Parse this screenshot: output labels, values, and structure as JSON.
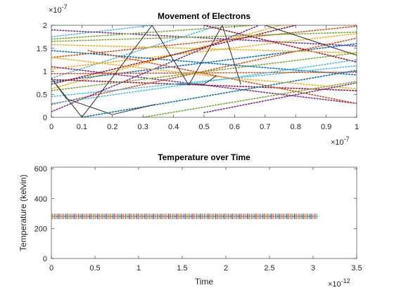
{
  "chart_data": [
    {
      "type": "line",
      "title": "Movement of Electrons",
      "xlabel": "",
      "ylabel": "",
      "xlim": [
        0,
        1e-07
      ],
      "ylim": [
        0,
        2e-07
      ],
      "x_ticks": [
        "0",
        "0.1",
        "0.2",
        "0.3",
        "0.4",
        "0.5",
        "0.6",
        "0.7",
        "0.8",
        "0.9",
        "1"
      ],
      "y_ticks": [
        "0",
        "0.5",
        "1",
        "1.5",
        "2"
      ],
      "x_exponent": "-7",
      "y_exponent": "-7",
      "grid": false,
      "marker": "dotted",
      "series": [
        {
          "color": "#4DBEEE",
          "points": [
            [
              0,
              1.75e-07
            ],
            [
              3.3e-08,
              2e-07
            ]
          ]
        },
        {
          "color": "#D95319",
          "points": [
            [
              0,
              1.3e-07
            ],
            [
              1e-07,
              1.98e-07
            ]
          ]
        },
        {
          "color": "#EDB120",
          "points": [
            [
              0,
              6.2e-08
            ],
            [
              7.5e-08,
              2e-07
            ]
          ]
        },
        {
          "color": "#7E2F8E",
          "points": [
            [
              0,
              1.9e-07
            ],
            [
              1e-07,
              1.55e-07
            ]
          ]
        },
        {
          "color": "#77AC30",
          "points": [
            [
              0,
              1.7e-07
            ],
            [
              6.6e-08,
              2e-07
            ]
          ]
        },
        {
          "color": "#0072BD",
          "points": [
            [
              0,
              7.7e-08
            ],
            [
              1e-07,
              1.6e-07
            ]
          ]
        },
        {
          "color": "#A2142F",
          "points": [
            [
              0,
              8.2e-08
            ],
            [
              1e-07,
              5.8e-08
            ]
          ]
        },
        {
          "color": "#4DBEEE",
          "points": [
            [
              0,
              8.5e-08
            ],
            [
              5.5e-08,
              2e-07
            ]
          ]
        },
        {
          "color": "#D95319",
          "points": [
            [
              0,
              2.8e-08
            ],
            [
              1e-07,
              1.72e-07
            ]
          ]
        },
        {
          "color": "#EDB120",
          "points": [
            [
              0,
              1.05e-07
            ],
            [
              1e-07,
              1.82e-07
            ]
          ]
        },
        {
          "color": "#7E2F8E",
          "points": [
            [
              0,
              1.1e-07
            ],
            [
              1e-07,
              3e-08
            ]
          ]
        },
        {
          "color": "#77AC30",
          "points": [
            [
              0,
              5.8e-08
            ],
            [
              1e-07,
              1.4e-07
            ]
          ]
        },
        {
          "color": "#0072BD",
          "points": [
            [
              0,
              1.45e-07
            ],
            [
              1e-07,
              9.2e-08
            ]
          ]
        },
        {
          "color": "#A2142F",
          "points": [
            [
              5e-08,
              2e-07
            ],
            [
              1e-07,
              1.2e-07
            ]
          ]
        },
        {
          "color": "#4DBEEE",
          "points": [
            [
              0,
              4.5e-08
            ],
            [
              1e-07,
              1.12e-07
            ]
          ]
        },
        {
          "color": "#D95319",
          "points": [
            [
              0,
              9.5e-08
            ],
            [
              1e-07,
              9.8e-08
            ]
          ]
        },
        {
          "color": "#EDB120",
          "points": [
            [
              0,
              1.58e-07
            ],
            [
              1e-07,
              1.4e-07
            ]
          ]
        },
        {
          "color": "#7E2F8E",
          "points": [
            [
              0,
              1.2e-08
            ],
            [
              6.8e-08,
              2e-07
            ]
          ]
        },
        {
          "color": "#77AC30",
          "points": [
            [
              3e-08,
              0
            ],
            [
              1e-07,
              7.8e-08
            ]
          ]
        },
        {
          "color": "#0072BD",
          "points": [
            [
              1e-08,
              0
            ],
            [
              1e-07,
              1.02e-07
            ]
          ]
        },
        {
          "color": "#A2142F",
          "points": [
            [
              0,
              7.2e-08
            ],
            [
              8e-08,
              2e-07
            ]
          ]
        },
        {
          "color": "#D95319",
          "points": [
            [
              1.2e-08,
              1.45e-07
            ],
            [
              1e-07,
              3e-08
            ]
          ]
        },
        {
          "color": "#EDB120",
          "points": [
            [
              0,
              1.3e-07
            ],
            [
              5.5e-08,
              8.8e-08
            ],
            [
              1e-07,
              6.2e-08
            ]
          ]
        },
        {
          "color": "#4DBEEE",
          "points": [
            [
              0,
              3e-08
            ],
            [
              4.5e-08,
              7.2e-08
            ],
            [
              1e-07,
              1.25e-07
            ]
          ]
        },
        {
          "color": "#7E2F8E",
          "points": [
            [
              5e-08,
              1e-08
            ],
            [
              1e-07,
              7.5e-08
            ]
          ]
        },
        {
          "color": "#77AC30",
          "points": [
            [
              0,
              1.65e-07
            ],
            [
              1e-07,
              1.85e-07
            ]
          ]
        },
        {
          "color": "#404040",
          "points": [
            [
              0,
              8.5e-08
            ],
            [
              1e-08,
              0
            ],
            [
              3.3e-08,
              2e-07
            ],
            [
              4.5e-08,
              7e-08
            ],
            [
              5.6e-08,
              2e-07
            ],
            [
              6.2e-08,
              7.2e-08
            ]
          ]
        },
        {
          "color": "#404040",
          "points": [
            [
              0,
              8.5e-08
            ],
            [
              5e-09,
              4e-08
            ],
            [
              2e-08,
              6e-09
            ],
            [
              3.4e-08,
              2.8e-08
            ]
          ]
        },
        {
          "color": "#404040",
          "points": [
            [
              4.1e-08,
              7.2e-08
            ],
            [
              5e-08,
              7.2e-08
            ],
            [
              5.4e-08,
              9e-08
            ]
          ]
        },
        {
          "color": "#404040",
          "points": [
            [
              7e-08,
              2e-07
            ],
            [
              9.3e-08,
              1.5e-07
            ],
            [
              1e-07,
              1.35e-07
            ]
          ]
        }
      ]
    },
    {
      "type": "scatter",
      "title": "Temperature over Time",
      "xlabel": "Time",
      "ylabel": "Temperature (kelvin)",
      "xlim": [
        0,
        3.5e-12
      ],
      "ylim": [
        0,
        610
      ],
      "x_ticks": [
        "0",
        "0.5",
        "1",
        "1.5",
        "2",
        "2.5",
        "3",
        "3.5"
      ],
      "y_ticks": [
        "0",
        "200",
        "400",
        "600"
      ],
      "x_exponent": "-12",
      "grid": false,
      "marker": "+",
      "value": 281,
      "x_end": 3.05e-12,
      "colors": [
        "#0072BD",
        "#D95319",
        "#EDB120",
        "#7E2F8E",
        "#77AC30",
        "#4DBEEE",
        "#A2142F"
      ]
    }
  ]
}
